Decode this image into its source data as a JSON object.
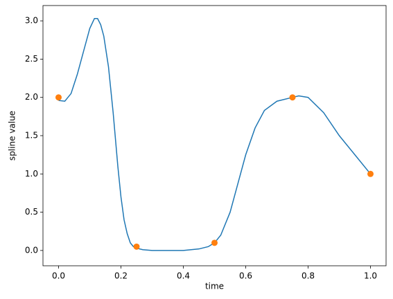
{
  "chart_data": {
    "type": "line",
    "xlabel": "time",
    "ylabel": "spline value",
    "xlim": [
      -0.05,
      1.05
    ],
    "ylim": [
      -0.2,
      3.2
    ],
    "xticks": [
      {
        "value": 0,
        "label": "0.0"
      },
      0.2,
      0.4,
      0.6,
      0.8,
      {
        "value": 1,
        "label": "1.0"
      }
    ],
    "yticks": [
      {
        "value": 0,
        "label": "0.0"
      },
      0.5,
      {
        "value": 1,
        "label": "1.0"
      },
      1.5,
      {
        "value": 2,
        "label": "2.0"
      },
      2.5,
      {
        "value": 3,
        "label": "3.0"
      }
    ],
    "grid": false,
    "series": [
      {
        "type": "line",
        "color": "#1f77b4",
        "x": [
          0,
          0.02,
          0.04,
          0.06,
          0.08,
          0.1,
          0.115,
          0.125,
          0.135,
          0.145,
          0.16,
          0.175,
          0.19,
          0.2,
          0.21,
          0.22,
          0.23,
          0.24,
          0.25,
          0.27,
          0.3,
          0.35,
          0.4,
          0.45,
          0.48,
          0.5,
          0.52,
          0.55,
          0.58,
          0.6,
          0.63,
          0.66,
          0.7,
          0.75,
          0.77,
          0.8,
          0.85,
          0.9,
          0.95,
          1.0
        ],
        "values": [
          1.96,
          1.95,
          2.05,
          2.3,
          2.6,
          2.9,
          3.03,
          3.03,
          2.95,
          2.8,
          2.4,
          1.8,
          1.1,
          0.7,
          0.4,
          0.22,
          0.1,
          0.05,
          0.03,
          0.01,
          0.0,
          0.0,
          0.0,
          0.02,
          0.05,
          0.1,
          0.2,
          0.5,
          0.95,
          1.25,
          1.6,
          1.83,
          1.95,
          2.0,
          2.02,
          2.0,
          1.8,
          1.5,
          1.25,
          1.0
        ]
      },
      {
        "type": "scatter",
        "color": "#ff7f0e",
        "x": [
          0,
          0.25,
          0.5,
          0.75,
          1.0
        ],
        "values": [
          2.0,
          0.05,
          0.1,
          2.0,
          1.0
        ]
      }
    ]
  }
}
